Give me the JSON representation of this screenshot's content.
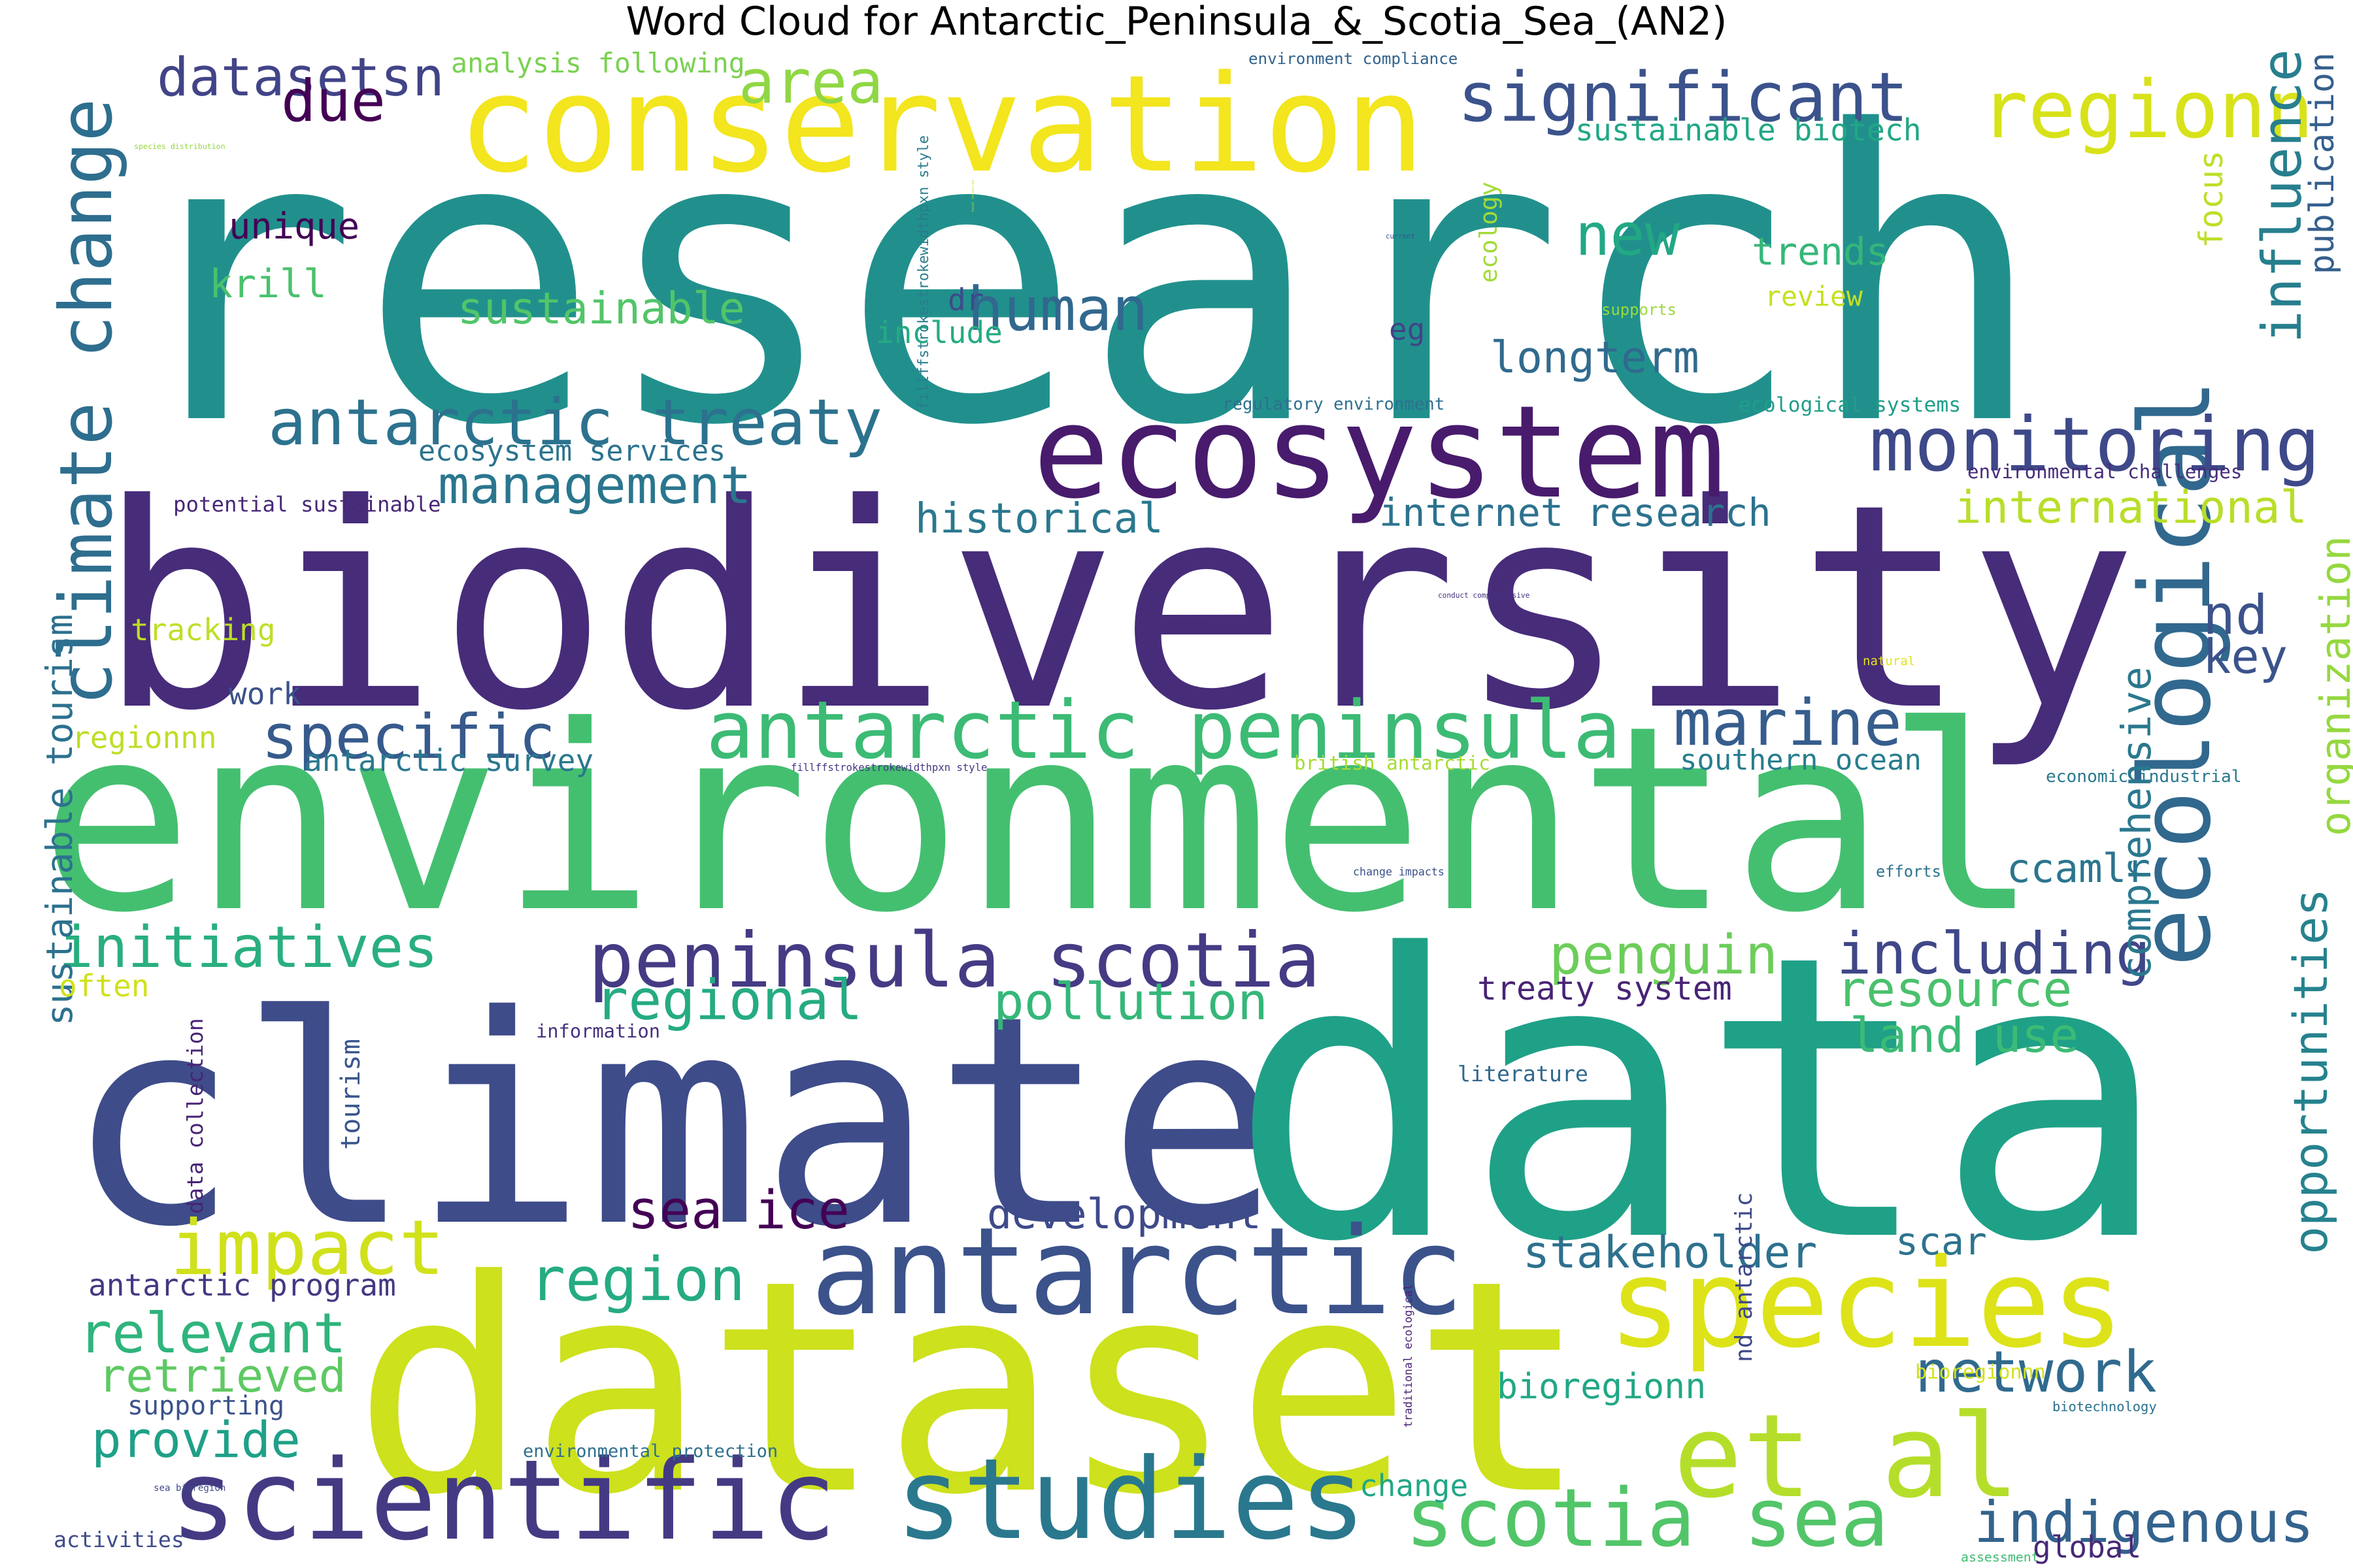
{
  "chart_data": {
    "type": "wordcloud",
    "title": "Word Cloud for Antarctic_Peninsula_&_Scotia_Sea_(AN2)",
    "colormap": "viridis",
    "background": "#ffffff",
    "words": [
      {
        "text": "research",
        "weight": 1.0,
        "color": "#21908d",
        "orientation": "horizontal"
      },
      {
        "text": "biodiversity",
        "weight": 0.82,
        "color": "#472c7a",
        "orientation": "horizontal"
      },
      {
        "text": "environmental",
        "weight": 0.72,
        "color": "#44bf70",
        "orientation": "horizontal"
      },
      {
        "text": "climate",
        "weight": 0.66,
        "color": "#3e4c8a",
        "orientation": "horizontal"
      },
      {
        "text": "data",
        "weight": 0.66,
        "color": "#1fa187",
        "orientation": "horizontal"
      },
      {
        "text": "dataset",
        "weight": 0.6,
        "color": "#cde11d",
        "orientation": "horizontal"
      },
      {
        "text": "conservation",
        "weight": 0.32,
        "color": "#f3e51e",
        "orientation": "horizontal"
      },
      {
        "text": "ecosystem",
        "weight": 0.33,
        "color": "#481b6d",
        "orientation": "horizontal"
      },
      {
        "text": "antarctic",
        "weight": 0.3,
        "color": "#3b528b",
        "orientation": "horizontal"
      },
      {
        "text": "ecological",
        "weight": 0.3,
        "color": "#31688e",
        "orientation": "vertical"
      },
      {
        "text": "species",
        "weight": 0.26,
        "color": "#dde318",
        "orientation": "horizontal"
      },
      {
        "text": "et al",
        "weight": 0.25,
        "color": "#b5de2b",
        "orientation": "horizontal"
      },
      {
        "text": "scientific",
        "weight": 0.24,
        "color": "#443a83",
        "orientation": "horizontal"
      },
      {
        "text": "studies",
        "weight": 0.24,
        "color": "#2a788e",
        "orientation": "horizontal"
      },
      {
        "text": "climate change",
        "weight": 0.2,
        "color": "#2e6e8e",
        "orientation": "vertical"
      },
      {
        "text": "antarctic peninsula",
        "weight": 0.19,
        "color": "#3cbb75",
        "orientation": "horizontal"
      },
      {
        "text": "scotia sea",
        "weight": 0.17,
        "color": "#52c569",
        "orientation": "horizontal"
      },
      {
        "text": "regionn",
        "weight": 0.17,
        "color": "#d8e219",
        "orientation": "horizontal"
      },
      {
        "text": "significant",
        "weight": 0.16,
        "color": "#3b528b",
        "orientation": "horizontal"
      },
      {
        "text": "antarctic treaty",
        "weight": 0.16,
        "color": "#2c728e",
        "orientation": "horizontal"
      },
      {
        "text": "monitoring",
        "weight": 0.16,
        "color": "#3e4989",
        "orientation": "horizontal"
      },
      {
        "text": "peninsula scotia",
        "weight": 0.16,
        "color": "#443b84",
        "orientation": "horizontal"
      },
      {
        "text": "impact",
        "weight": 0.16,
        "color": "#d0e11c",
        "orientation": "horizontal"
      },
      {
        "text": "specific",
        "weight": 0.13,
        "color": "#375a8c",
        "orientation": "horizontal"
      },
      {
        "text": "datasetsn",
        "weight": 0.13,
        "color": "#414487",
        "orientation": "horizontal"
      },
      {
        "text": "indigenous",
        "weight": 0.13,
        "color": "#33638d",
        "orientation": "horizontal"
      },
      {
        "text": "initiatives",
        "weight": 0.13,
        "color": "#29af7f",
        "orientation": "horizontal"
      },
      {
        "text": "including",
        "weight": 0.13,
        "color": "#3f4788",
        "orientation": "horizontal"
      },
      {
        "text": "network",
        "weight": 0.12,
        "color": "#306a8e",
        "orientation": "horizontal"
      },
      {
        "text": "region",
        "weight": 0.12,
        "color": "#25ab82",
        "orientation": "horizontal"
      },
      {
        "text": "relevant",
        "weight": 0.12,
        "color": "#2fb47c",
        "orientation": "horizontal"
      },
      {
        "text": "marine",
        "weight": 0.12,
        "color": "#365d8d",
        "orientation": "horizontal"
      },
      {
        "text": "stakeholder",
        "weight": 0.11,
        "color": "#2d718e",
        "orientation": "horizontal"
      },
      {
        "text": "management",
        "weight": 0.11,
        "color": "#2a768e",
        "orientation": "horizontal"
      },
      {
        "text": "nd",
        "weight": 0.11,
        "color": "#3b528b",
        "orientation": "horizontal"
      },
      {
        "text": "key",
        "weight": 0.11,
        "color": "#3a538b",
        "orientation": "horizontal"
      },
      {
        "text": "regional",
        "weight": 0.11,
        "color": "#25ab82",
        "orientation": "horizontal"
      },
      {
        "text": "pollution",
        "weight": 0.11,
        "color": "#35b779",
        "orientation": "horizontal"
      },
      {
        "text": "penguin",
        "weight": 0.1,
        "color": "#6ccd5a",
        "orientation": "horizontal"
      },
      {
        "text": "resource",
        "weight": 0.1,
        "color": "#4ac16d",
        "orientation": "horizontal"
      },
      {
        "text": "comprehensive",
        "weight": 0.1,
        "color": "#2a788e",
        "orientation": "vertical"
      },
      {
        "text": "opportunities",
        "weight": 0.1,
        "color": "#26828e",
        "orientation": "vertical"
      },
      {
        "text": "organization",
        "weight": 0.1,
        "color": "#95d840",
        "orientation": "vertical"
      },
      {
        "text": "influence",
        "weight": 0.1,
        "color": "#277f8e",
        "orientation": "vertical"
      },
      {
        "text": "publication",
        "weight": 0.1,
        "color": "#355f8d",
        "orientation": "vertical"
      },
      {
        "text": "focus",
        "weight": 0.1,
        "color": "#bddf26",
        "orientation": "vertical"
      },
      {
        "text": "international",
        "weight": 0.1,
        "color": "#b8de29",
        "orientation": "horizontal"
      },
      {
        "text": "historical",
        "weight": 0.1,
        "color": "#2a788e",
        "orientation": "horizontal"
      },
      {
        "text": "internet research",
        "weight": 0.1,
        "color": "#2c728e",
        "orientation": "horizontal"
      },
      {
        "text": "development",
        "weight": 0.1,
        "color": "#3e4a89",
        "orientation": "horizontal"
      },
      {
        "text": "sea ice",
        "weight": 0.1,
        "color": "#440154",
        "orientation": "horizontal"
      },
      {
        "text": "bioregionn",
        "weight": 0.09,
        "color": "#22a785",
        "orientation": "horizontal"
      },
      {
        "text": "retrieved",
        "weight": 0.09,
        "color": "#5ec962",
        "orientation": "horizontal"
      },
      {
        "text": "provide",
        "weight": 0.09,
        "color": "#1fa088",
        "orientation": "horizontal"
      },
      {
        "text": "sustainable",
        "weight": 0.09,
        "color": "#52c569",
        "orientation": "horizontal"
      },
      {
        "text": "sustainable tourism",
        "weight": 0.09,
        "color": "#2c718e",
        "orientation": "vertical"
      },
      {
        "text": "scar",
        "weight": 0.08,
        "color": "#2c738e",
        "orientation": "horizontal"
      },
      {
        "text": "treaty system",
        "weight": 0.07,
        "color": "#482475",
        "orientation": "horizontal"
      },
      {
        "text": "ccamlr",
        "weight": 0.08,
        "color": "#2b758e",
        "orientation": "horizontal"
      },
      {
        "text": "longterm",
        "weight": 0.08,
        "color": "#306a8e",
        "orientation": "horizontal"
      },
      {
        "text": "new",
        "weight": 0.08,
        "color": "#22a884",
        "orientation": "horizontal"
      },
      {
        "text": "trends",
        "weight": 0.08,
        "color": "#35b779",
        "orientation": "horizontal"
      },
      {
        "text": "unique",
        "weight": 0.08,
        "color": "#440154",
        "orientation": "horizontal"
      },
      {
        "text": "due",
        "weight": 0.08,
        "color": "#440154",
        "orientation": "horizontal"
      },
      {
        "text": "krill",
        "weight": 0.08,
        "color": "#4ac16d",
        "orientation": "horizontal"
      },
      {
        "text": "human",
        "weight": 0.08,
        "color": "#31688e",
        "orientation": "horizontal"
      },
      {
        "text": "land use",
        "weight": 0.08,
        "color": "#3cbb75",
        "orientation": "horizontal"
      },
      {
        "text": "tourism",
        "weight": 0.07,
        "color": "#39568c",
        "orientation": "vertical"
      },
      {
        "text": "area",
        "weight": 0.08,
        "color": "#8fd744",
        "orientation": "horizontal"
      },
      {
        "text": "sustainable biotech",
        "weight": 0.06,
        "color": "#22a785",
        "orientation": "horizontal"
      },
      {
        "text": "analysis following",
        "weight": 0.06,
        "color": "#7ad151",
        "orientation": "horizontal"
      },
      {
        "text": "environment compliance",
        "weight": 0.04,
        "color": "#33638d",
        "orientation": "horizontal"
      },
      {
        "text": "species distribution",
        "weight": 0.04,
        "color": "#95d840",
        "orientation": "horizontal"
      },
      {
        "text": "include",
        "weight": 0.04,
        "color": "#25ab82",
        "orientation": "horizontal"
      },
      {
        "text": "local resources",
        "weight": 0.04,
        "color": "#c2df23",
        "orientation": "vertical"
      },
      {
        "text": "dr",
        "weight": 0.04,
        "color": "#3e4a89",
        "orientation": "horizontal"
      },
      {
        "text": "current",
        "weight": 0.04,
        "color": "#3b528b",
        "orientation": "horizontal"
      },
      {
        "text": "eg",
        "weight": 0.04,
        "color": "#414487",
        "orientation": "horizontal"
      },
      {
        "text": "ecology",
        "weight": 0.04,
        "color": "#a2da37",
        "orientation": "vertical"
      },
      {
        "text": "supports",
        "weight": 0.04,
        "color": "#9bd93c",
        "orientation": "horizontal"
      },
      {
        "text": "review",
        "weight": 0.04,
        "color": "#c7e020",
        "orientation": "horizontal"
      },
      {
        "text": "tracking",
        "weight": 0.04,
        "color": "#bddf26",
        "orientation": "horizontal"
      },
      {
        "text": "fillffstrokestrokewidthpxn style",
        "weight": 0.04,
        "color": "#287c8e",
        "orientation": "vertical"
      },
      {
        "text": "regulatory environment",
        "weight": 0.04,
        "color": "#2d708e",
        "orientation": "horizontal"
      },
      {
        "text": "ecological systems",
        "weight": 0.04,
        "color": "#1f9e89",
        "orientation": "horizontal"
      },
      {
        "text": "ecosystem services",
        "weight": 0.04,
        "color": "#2c738e",
        "orientation": "horizontal"
      },
      {
        "text": "environmental challenges",
        "weight": 0.04,
        "color": "#472d7b",
        "orientation": "horizontal"
      },
      {
        "text": "potential sustainable",
        "weight": 0.04,
        "color": "#482878",
        "orientation": "horizontal"
      },
      {
        "text": "conduct comprehensive",
        "weight": 0.04,
        "color": "#46307e",
        "orientation": "horizontal"
      },
      {
        "text": "natural",
        "weight": 0.04,
        "color": "#e5e419",
        "orientation": "horizontal"
      },
      {
        "text": "work",
        "weight": 0.04,
        "color": "#3b528b",
        "orientation": "horizontal"
      },
      {
        "text": "regionnn",
        "weight": 0.04,
        "color": "#bddf26",
        "orientation": "horizontal"
      },
      {
        "text": "antarctic survey",
        "weight": 0.04,
        "color": "#2a788e",
        "orientation": "horizontal"
      },
      {
        "text": "fillffstrokestrokewidthpxn style",
        "weight": 0.04,
        "color": "#443a83",
        "orientation": "horizontal"
      },
      {
        "text": "british antarctic",
        "weight": 0.04,
        "color": "#a8db34",
        "orientation": "horizontal"
      },
      {
        "text": "southern ocean",
        "weight": 0.04,
        "color": "#287d8e",
        "orientation": "horizontal"
      },
      {
        "text": "economic industrial",
        "weight": 0.04,
        "color": "#2a788e",
        "orientation": "horizontal"
      },
      {
        "text": "change impacts",
        "weight": 0.04,
        "color": "#3b528b",
        "orientation": "horizontal"
      },
      {
        "text": "efforts",
        "weight": 0.04,
        "color": "#2c728e",
        "orientation": "horizontal"
      },
      {
        "text": "often",
        "weight": 0.04,
        "color": "#d0e11c",
        "orientation": "horizontal"
      },
      {
        "text": "information",
        "weight": 0.04,
        "color": "#46317e",
        "orientation": "horizontal"
      },
      {
        "text": "literature",
        "weight": 0.04,
        "color": "#31688e",
        "orientation": "horizontal"
      },
      {
        "text": "bioregionnn",
        "weight": 0.04,
        "color": "#d2e21b",
        "orientation": "horizontal"
      },
      {
        "text": "data collection",
        "weight": 0.04,
        "color": "#482475",
        "orientation": "vertical"
      },
      {
        "text": "antarctic program",
        "weight": 0.04,
        "color": "#453882",
        "orientation": "horizontal"
      },
      {
        "text": "environmental protection",
        "weight": 0.04,
        "color": "#2d708e",
        "orientation": "horizontal"
      },
      {
        "text": "traditional ecological",
        "weight": 0.04,
        "color": "#482173",
        "orientation": "vertical"
      },
      {
        "text": "nd antarctic",
        "weight": 0.04,
        "color": "#3e4989",
        "orientation": "vertical"
      },
      {
        "text": "biotechnology",
        "weight": 0.04,
        "color": "#2d718e",
        "orientation": "horizontal"
      },
      {
        "text": "supporting",
        "weight": 0.04,
        "color": "#3b528b",
        "orientation": "horizontal"
      },
      {
        "text": "sea bioregion",
        "weight": 0.04,
        "color": "#3e4a89",
        "orientation": "horizontal"
      },
      {
        "text": "change",
        "weight": 0.04,
        "color": "#22a785",
        "orientation": "horizontal"
      },
      {
        "text": "activities",
        "weight": 0.04,
        "color": "#3e4c8a",
        "orientation": "horizontal"
      },
      {
        "text": "assessment",
        "weight": 0.04,
        "color": "#3fbc73",
        "orientation": "horizontal"
      },
      {
        "text": "global",
        "weight": 0.04,
        "color": "#482878",
        "orientation": "horizontal"
      },
      {
        "text": "antarctic southern",
        "weight": 0.04,
        "color": "#dde318",
        "orientation": "horizontal"
      }
    ]
  }
}
